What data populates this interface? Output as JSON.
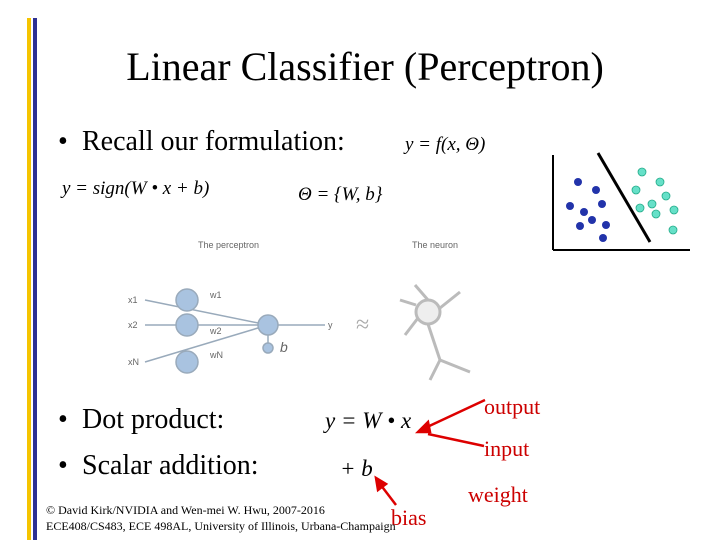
{
  "slide": {
    "title": "Linear Classifier (Perceptron)",
    "bullets": [
      "Recall our formulation:",
      "Dot product:",
      "Scalar addition:"
    ],
    "formulas": {
      "model": "y = f(x, Θ)",
      "sign": "y = sign(W • x + b)",
      "params": "Θ  = {W, b}",
      "dot": "y = W • x",
      "add": "+ b"
    },
    "figure": {
      "left_caption": "The perceptron",
      "right_caption": "The neuron",
      "inputs": [
        "x1",
        "x2",
        "xN"
      ],
      "weights": [
        "w1",
        "w2",
        "wN"
      ],
      "output": "y",
      "bias": "b",
      "approx": "≈"
    },
    "annotations": {
      "output": "output",
      "input": "input",
      "weight": "weight",
      "bias": "bias"
    },
    "footer": [
      "© David Kirk/NVIDIA and Wen-mei W. Hwu, 2007-2016",
      "ECE408/CS483, ECE 498AL, University of Illinois, Urbana-Champaign"
    ]
  }
}
